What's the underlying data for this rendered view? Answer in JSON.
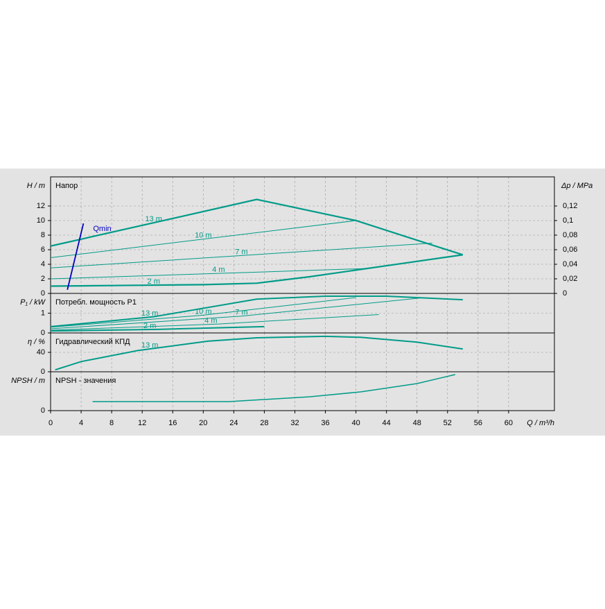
{
  "chart_data": [
    {
      "type": "line",
      "title": "Напор",
      "ylabel": "H / m",
      "y2label": "Δp / MPa",
      "ylim": [
        0,
        16
      ],
      "yticks": [
        0,
        2,
        4,
        6,
        8,
        10,
        12
      ],
      "y2lim": [
        0,
        0.16
      ],
      "y2ticks": [
        0,
        {
          "value": 0.02,
          "label": "0,02"
        },
        {
          "value": 0.04,
          "label": "0,04"
        },
        {
          "value": 0.06,
          "label": "0,06"
        },
        {
          "value": 0.08,
          "label": "0,08"
        },
        {
          "value": 0.1,
          "label": "0,1"
        },
        {
          "value": 0.12,
          "label": "0,12"
        }
      ],
      "series": [
        {
          "name": "13 m",
          "color": "#009b88",
          "x": [
            0,
            27,
            40,
            48,
            54
          ],
          "values": [
            6.5,
            12.9,
            10,
            7.3,
            5.3
          ]
        },
        {
          "name": "10 m",
          "color": "#009b88",
          "x": [
            0,
            40
          ],
          "values": [
            4.9,
            10
          ]
        },
        {
          "name": "7 m",
          "color": "#009b88",
          "x": [
            0,
            50
          ],
          "values": [
            3.5,
            6.9
          ]
        },
        {
          "name": "4 m",
          "color": "#009b88",
          "x": [
            0,
            41
          ],
          "values": [
            2.0,
            3.4
          ]
        },
        {
          "name": "2 m",
          "color": "#009b88",
          "x": [
            0,
            10,
            20,
            27,
            34,
            40,
            46,
            54
          ],
          "values": [
            1.0,
            1.1,
            1.2,
            1.4,
            2.3,
            3.2,
            4.1,
            5.3
          ]
        },
        {
          "name": "Qmin",
          "color": "#0000c0",
          "x": [
            2.2,
            4.3
          ],
          "values": [
            0.5,
            9.6
          ]
        }
      ]
    },
    {
      "type": "line",
      "title": "Потребл. мощность P1",
      "ylabel": "P₁ / kW",
      "ylim": [
        0,
        2
      ],
      "yticks": [
        0,
        1
      ],
      "series": [
        {
          "name": "13 m",
          "color": "#009b88",
          "x": [
            0,
            13.5,
            27,
            36,
            44,
            54
          ],
          "values": [
            0.32,
            0.82,
            1.71,
            1.86,
            1.86,
            1.68
          ]
        },
        {
          "name": "10 m",
          "color": "#009b88",
          "x": [
            0,
            20,
            40
          ],
          "values": [
            0.29,
            0.9,
            1.79
          ]
        },
        {
          "name": "7 m",
          "color": "#009b88",
          "x": [
            0,
            25,
            49
          ],
          "values": [
            0.21,
            0.85,
            1.79
          ]
        },
        {
          "name": "4 m",
          "color": "#009b88",
          "x": [
            0,
            22,
            43
          ],
          "values": [
            0.14,
            0.45,
            0.93
          ]
        },
        {
          "name": "2 m",
          "color": "#009b88",
          "x": [
            0,
            14,
            28
          ],
          "values": [
            0.1,
            0.18,
            0.32
          ]
        }
      ]
    },
    {
      "type": "line",
      "title": "Гидравлический КПД",
      "ylabel": "η / %",
      "ylim": [
        0,
        80
      ],
      "yticks": [
        0,
        40
      ],
      "series": [
        {
          "name": "13 m",
          "color": "#009b88",
          "x": [
            0.6,
            4,
            11.5,
            20.6,
            27,
            36,
            40.6,
            48,
            54
          ],
          "values": [
            4,
            21,
            44,
            63,
            70,
            73,
            71,
            61,
            47
          ]
        }
      ]
    },
    {
      "type": "line",
      "title": "NPSH - значения",
      "ylabel": "NPSH / m",
      "ylim": [
        0,
        8
      ],
      "yticks": [
        0
      ],
      "xlabel": "Q / m³/h",
      "xlim": [
        0,
        66
      ],
      "xticks": [
        0,
        4,
        8,
        12,
        16,
        20,
        24,
        28,
        32,
        36,
        40,
        44,
        48,
        52,
        56,
        60
      ],
      "series": [
        {
          "color": "#009b88",
          "x": [
            5.5,
            23.4,
            34,
            40.6,
            48,
            53
          ],
          "values": [
            1.86,
            1.86,
            2.86,
            3.86,
            5.57,
            7.43
          ]
        }
      ]
    }
  ]
}
